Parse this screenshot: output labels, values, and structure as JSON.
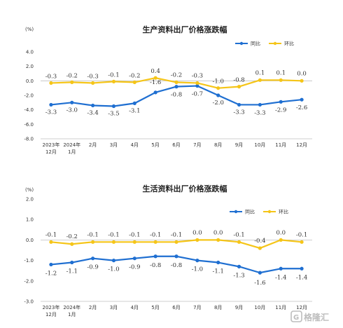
{
  "watermark": {
    "text": "格隆汇"
  },
  "chart_data": [
    {
      "type": "line",
      "title": "生产资料出厂价格涨跌幅",
      "ylabel": "(%)",
      "ylim": [
        -8.0,
        4.0
      ],
      "yticks": [
        "4.0",
        "2.0",
        "0.0",
        "-2.0",
        "-4.0",
        "-6.0",
        "-8.0"
      ],
      "ytick_values": [
        4,
        2,
        0,
        -2,
        -4,
        -6,
        -8
      ],
      "categories": [
        [
          "2023年",
          "12月"
        ],
        [
          "2024年",
          "1月"
        ],
        [
          "2月"
        ],
        [
          "3月"
        ],
        [
          "4月"
        ],
        [
          "5月"
        ],
        [
          "6月"
        ],
        [
          "7月"
        ],
        [
          "8月"
        ],
        [
          "9月"
        ],
        [
          "10月"
        ],
        [
          "11月"
        ],
        [
          "12月"
        ]
      ],
      "legend_position": "top-right",
      "series": [
        {
          "name": "同比",
          "color": "#1f6fd1",
          "values": [
            -3.3,
            -3.0,
            -3.4,
            -3.5,
            -3.1,
            -1.6,
            -0.8,
            -0.7,
            -2.0,
            -3.3,
            -3.3,
            -2.9,
            -2.6
          ],
          "labels": [
            "-3.3",
            "-3.0",
            "-3.4",
            "-3.5",
            "-3.1",
            "-1.6",
            "-0.8",
            "-0.7",
            "-2.0",
            "-3.3",
            "-3.3",
            "-2.9",
            "-2.6"
          ]
        },
        {
          "name": "环比",
          "color": "#f5c518",
          "values": [
            -0.3,
            -0.2,
            -0.3,
            -0.1,
            -0.2,
            0.4,
            -0.2,
            -0.3,
            -1.0,
            -0.8,
            0.1,
            0.1,
            0.0
          ],
          "labels": [
            "-0.3",
            "-0.2",
            "-0.3",
            "-0.1",
            "-0.2",
            "0.4",
            "-0.2",
            "-0.3",
            "-1.0",
            "-0.8",
            "0.1",
            "0.1",
            "0.0"
          ]
        }
      ]
    },
    {
      "type": "line",
      "title": "生活资料出厂价格涨跌幅",
      "ylabel": "(%)",
      "ylim": [
        -3.0,
        2.0
      ],
      "yticks": [
        "2.0",
        "1.0",
        "0.0",
        "-1.0",
        "-2.0",
        "-3.0"
      ],
      "ytick_values": [
        2,
        1,
        0,
        -1,
        -2,
        -3
      ],
      "categories": [
        [
          "2023年",
          "12月"
        ],
        [
          "2024年",
          "1月"
        ],
        [
          "2月"
        ],
        [
          "3月"
        ],
        [
          "4月"
        ],
        [
          "5月"
        ],
        [
          "6月"
        ],
        [
          "7月"
        ],
        [
          "8月"
        ],
        [
          "9月"
        ],
        [
          "10月"
        ],
        [
          "11月"
        ],
        [
          "12月"
        ]
      ],
      "legend_position": "top-right",
      "series": [
        {
          "name": "同比",
          "color": "#1f6fd1",
          "values": [
            -1.2,
            -1.1,
            -0.9,
            -1.0,
            -0.9,
            -0.8,
            -0.8,
            -1.0,
            -1.1,
            -1.3,
            -1.6,
            -1.4,
            -1.4
          ],
          "labels": [
            "-1.2",
            "-1.1",
            "-0.9",
            "-1.0",
            "-0.9",
            "-0.8",
            "-0.8",
            "-1.0",
            "-1.1",
            "-1.3",
            "-1.6",
            "-1.4",
            "-1.4"
          ]
        },
        {
          "name": "环比",
          "color": "#f5c518",
          "values": [
            -0.1,
            -0.2,
            -0.1,
            -0.1,
            -0.1,
            -0.1,
            -0.1,
            0.0,
            0.0,
            -0.1,
            -0.4,
            0.0,
            -0.1
          ],
          "labels": [
            "-0.1",
            "-0.2",
            "-0.1",
            "-0.1",
            "-0.1",
            "-0.1",
            "-0.1",
            "0.0",
            "0.0",
            "-0.1",
            "-0.4",
            "0.0",
            "-0.1"
          ]
        }
      ]
    }
  ]
}
